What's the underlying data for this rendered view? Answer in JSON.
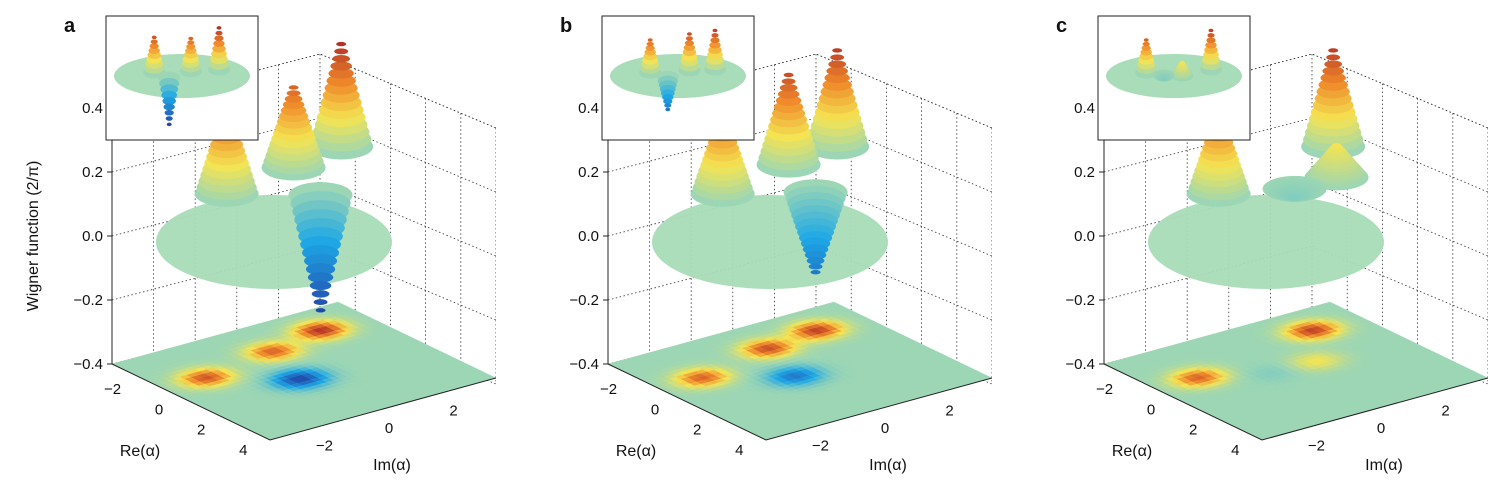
{
  "chart_data": [
    {
      "type": "surface3d",
      "panel_label": "a",
      "zlabel": "Wigner function (2/π)",
      "xlabel": "Re(α)",
      "ylabel": "Im(α)",
      "z_ticks": [
        "0.4",
        "0.2",
        "0.0",
        "−0.2",
        "−0.4"
      ],
      "re_ticks": [
        "−2",
        "0",
        "2",
        "4"
      ],
      "im_ticks": [
        "−2",
        "0",
        "2"
      ],
      "zlim": [
        -0.4,
        0.4
      ],
      "grid": true,
      "projection_colormap": true,
      "inset": true,
      "peaks": [
        {
          "re": -0.5,
          "im": -2.2,
          "w": 0.27
        },
        {
          "re": -1.5,
          "im": 2.0,
          "w": 0.32
        },
        {
          "re": -1.0,
          "im": 0.2,
          "w": 0.25
        },
        {
          "re": 1.2,
          "im": -0.4,
          "w": -0.36
        }
      ]
    },
    {
      "type": "surface3d",
      "panel_label": "b",
      "zlabel": "",
      "xlabel": "Re(α)",
      "ylabel": "Im(α)",
      "z_ticks": [
        "0.4",
        "0.2",
        "0.0",
        "−0.2",
        "−0.4"
      ],
      "re_ticks": [
        "−2",
        "0",
        "2",
        "4"
      ],
      "im_ticks": [
        "−2",
        "0",
        "2"
      ],
      "zlim": [
        -0.4,
        0.4
      ],
      "grid": true,
      "projection_colormap": true,
      "inset": true,
      "peaks": [
        {
          "re": -0.5,
          "im": -2.2,
          "w": 0.25
        },
        {
          "re": -1.5,
          "im": 2.0,
          "w": 0.3
        },
        {
          "re": -1.2,
          "im": 0.3,
          "w": 0.28
        },
        {
          "re": 1.0,
          "im": -0.3,
          "w": -0.25
        }
      ]
    },
    {
      "type": "surface3d",
      "panel_label": "c",
      "zlabel": "",
      "xlabel": "Re(α)",
      "ylabel": "Im(α)",
      "z_ticks": [
        "0.4",
        "0.2",
        "0.0",
        "−0.2",
        "−0.4"
      ],
      "re_ticks": [
        "−2",
        "0",
        "2",
        "4"
      ],
      "im_ticks": [
        "−2",
        "0",
        "2"
      ],
      "zlim": [
        -0.4,
        0.4
      ],
      "grid": true,
      "projection_colormap": true,
      "inset": true,
      "peaks": [
        {
          "re": -0.5,
          "im": -2.2,
          "w": 0.25
        },
        {
          "re": -1.5,
          "im": 2.0,
          "w": 0.3
        },
        {
          "re": 0.5,
          "im": 0.8,
          "w": 0.1
        },
        {
          "re": 0.5,
          "im": -0.5,
          "w": -0.03
        }
      ]
    }
  ],
  "colors": {
    "neg": "#2236a0",
    "low": "#1ea8e6",
    "zero": "#9cd6b4",
    "mid": "#f4e453",
    "high": "#f08a2a",
    "peak": "#a51c24"
  }
}
